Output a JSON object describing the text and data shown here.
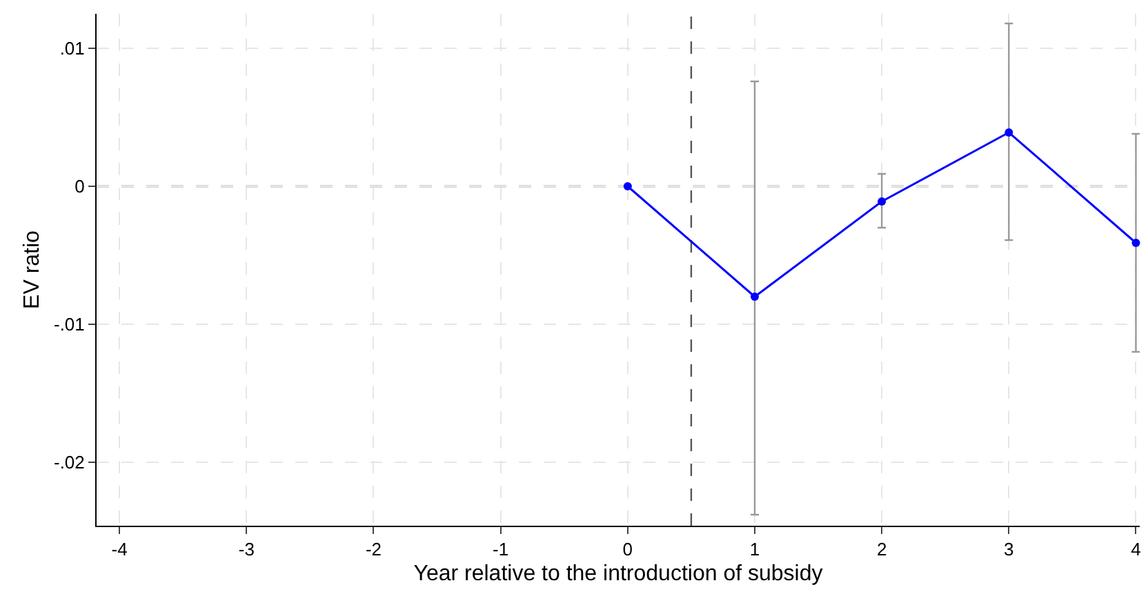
{
  "chart_data": {
    "type": "line",
    "xlabel": "Year relative to the introduction of subsidy",
    "ylabel": "EV ratio",
    "x": [
      0,
      1,
      2,
      3,
      4
    ],
    "series": [
      {
        "color": "#0000ff",
        "values": [
          0,
          -0.008,
          -0.0011,
          0.0039,
          -0.0041
        ],
        "errors": [
          null,
          [
            -0.0238,
            0.0076
          ],
          [
            -0.003,
            0.0009
          ],
          [
            -0.0039,
            0.0118
          ],
          [
            -0.012,
            0.0038
          ]
        ]
      }
    ],
    "xlim": [
      -4.18,
      4.03
    ],
    "xticks": [
      -4,
      -3,
      -2,
      -1,
      0,
      1,
      2,
      3,
      4
    ],
    "ylim": [
      -0.0246,
      0.0125
    ],
    "yticks": [
      {
        "value": 0.01,
        "label": ".01"
      },
      0,
      {
        "value": -0.01,
        "label": "-.01"
      },
      {
        "value": -0.02,
        "label": "-.02"
      }
    ],
    "ref_lines": [
      {
        "axis": "y",
        "value": 0,
        "color": "#555555",
        "line_style": "dashed"
      },
      {
        "axis": "x",
        "value": 0.5,
        "color": "#555555",
        "line_style": "dashed"
      }
    ],
    "grid": true,
    "marker": "circle",
    "line_style": "solid"
  }
}
